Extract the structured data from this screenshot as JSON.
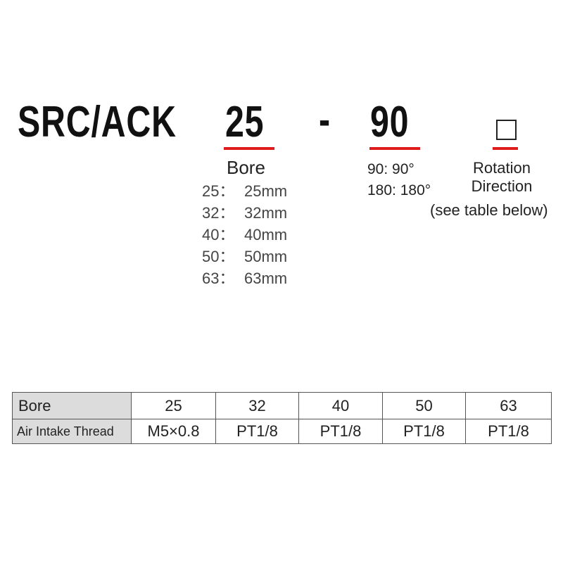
{
  "model": {
    "prefix": "SRC/ACK",
    "bore_code": "25",
    "separator": "-",
    "angle_code": "90",
    "direction_placeholder": "□",
    "accent_color": "#e01b1b"
  },
  "bore": {
    "label": "Bore",
    "options": [
      {
        "code": "25：",
        "value": "25mm"
      },
      {
        "code": "32：",
        "value": "32mm"
      },
      {
        "code": "40：",
        "value": "40mm"
      },
      {
        "code": "50：",
        "value": "50mm"
      },
      {
        "code": "63：",
        "value": "63mm"
      }
    ]
  },
  "angle": {
    "options": [
      "90: 90°",
      "180: 180°"
    ]
  },
  "direction": {
    "line1": "Rotation",
    "line2": "Direction",
    "note": "(see table below)"
  },
  "table": {
    "rows": [
      {
        "header": "Bore",
        "cells": [
          "25",
          "32",
          "40",
          "50",
          "63"
        ]
      },
      {
        "header": "Air Intake Thread",
        "cells": [
          "M5×0.8",
          "PT1/8",
          "PT1/8",
          "PT1/8",
          "PT1/8"
        ]
      }
    ]
  }
}
